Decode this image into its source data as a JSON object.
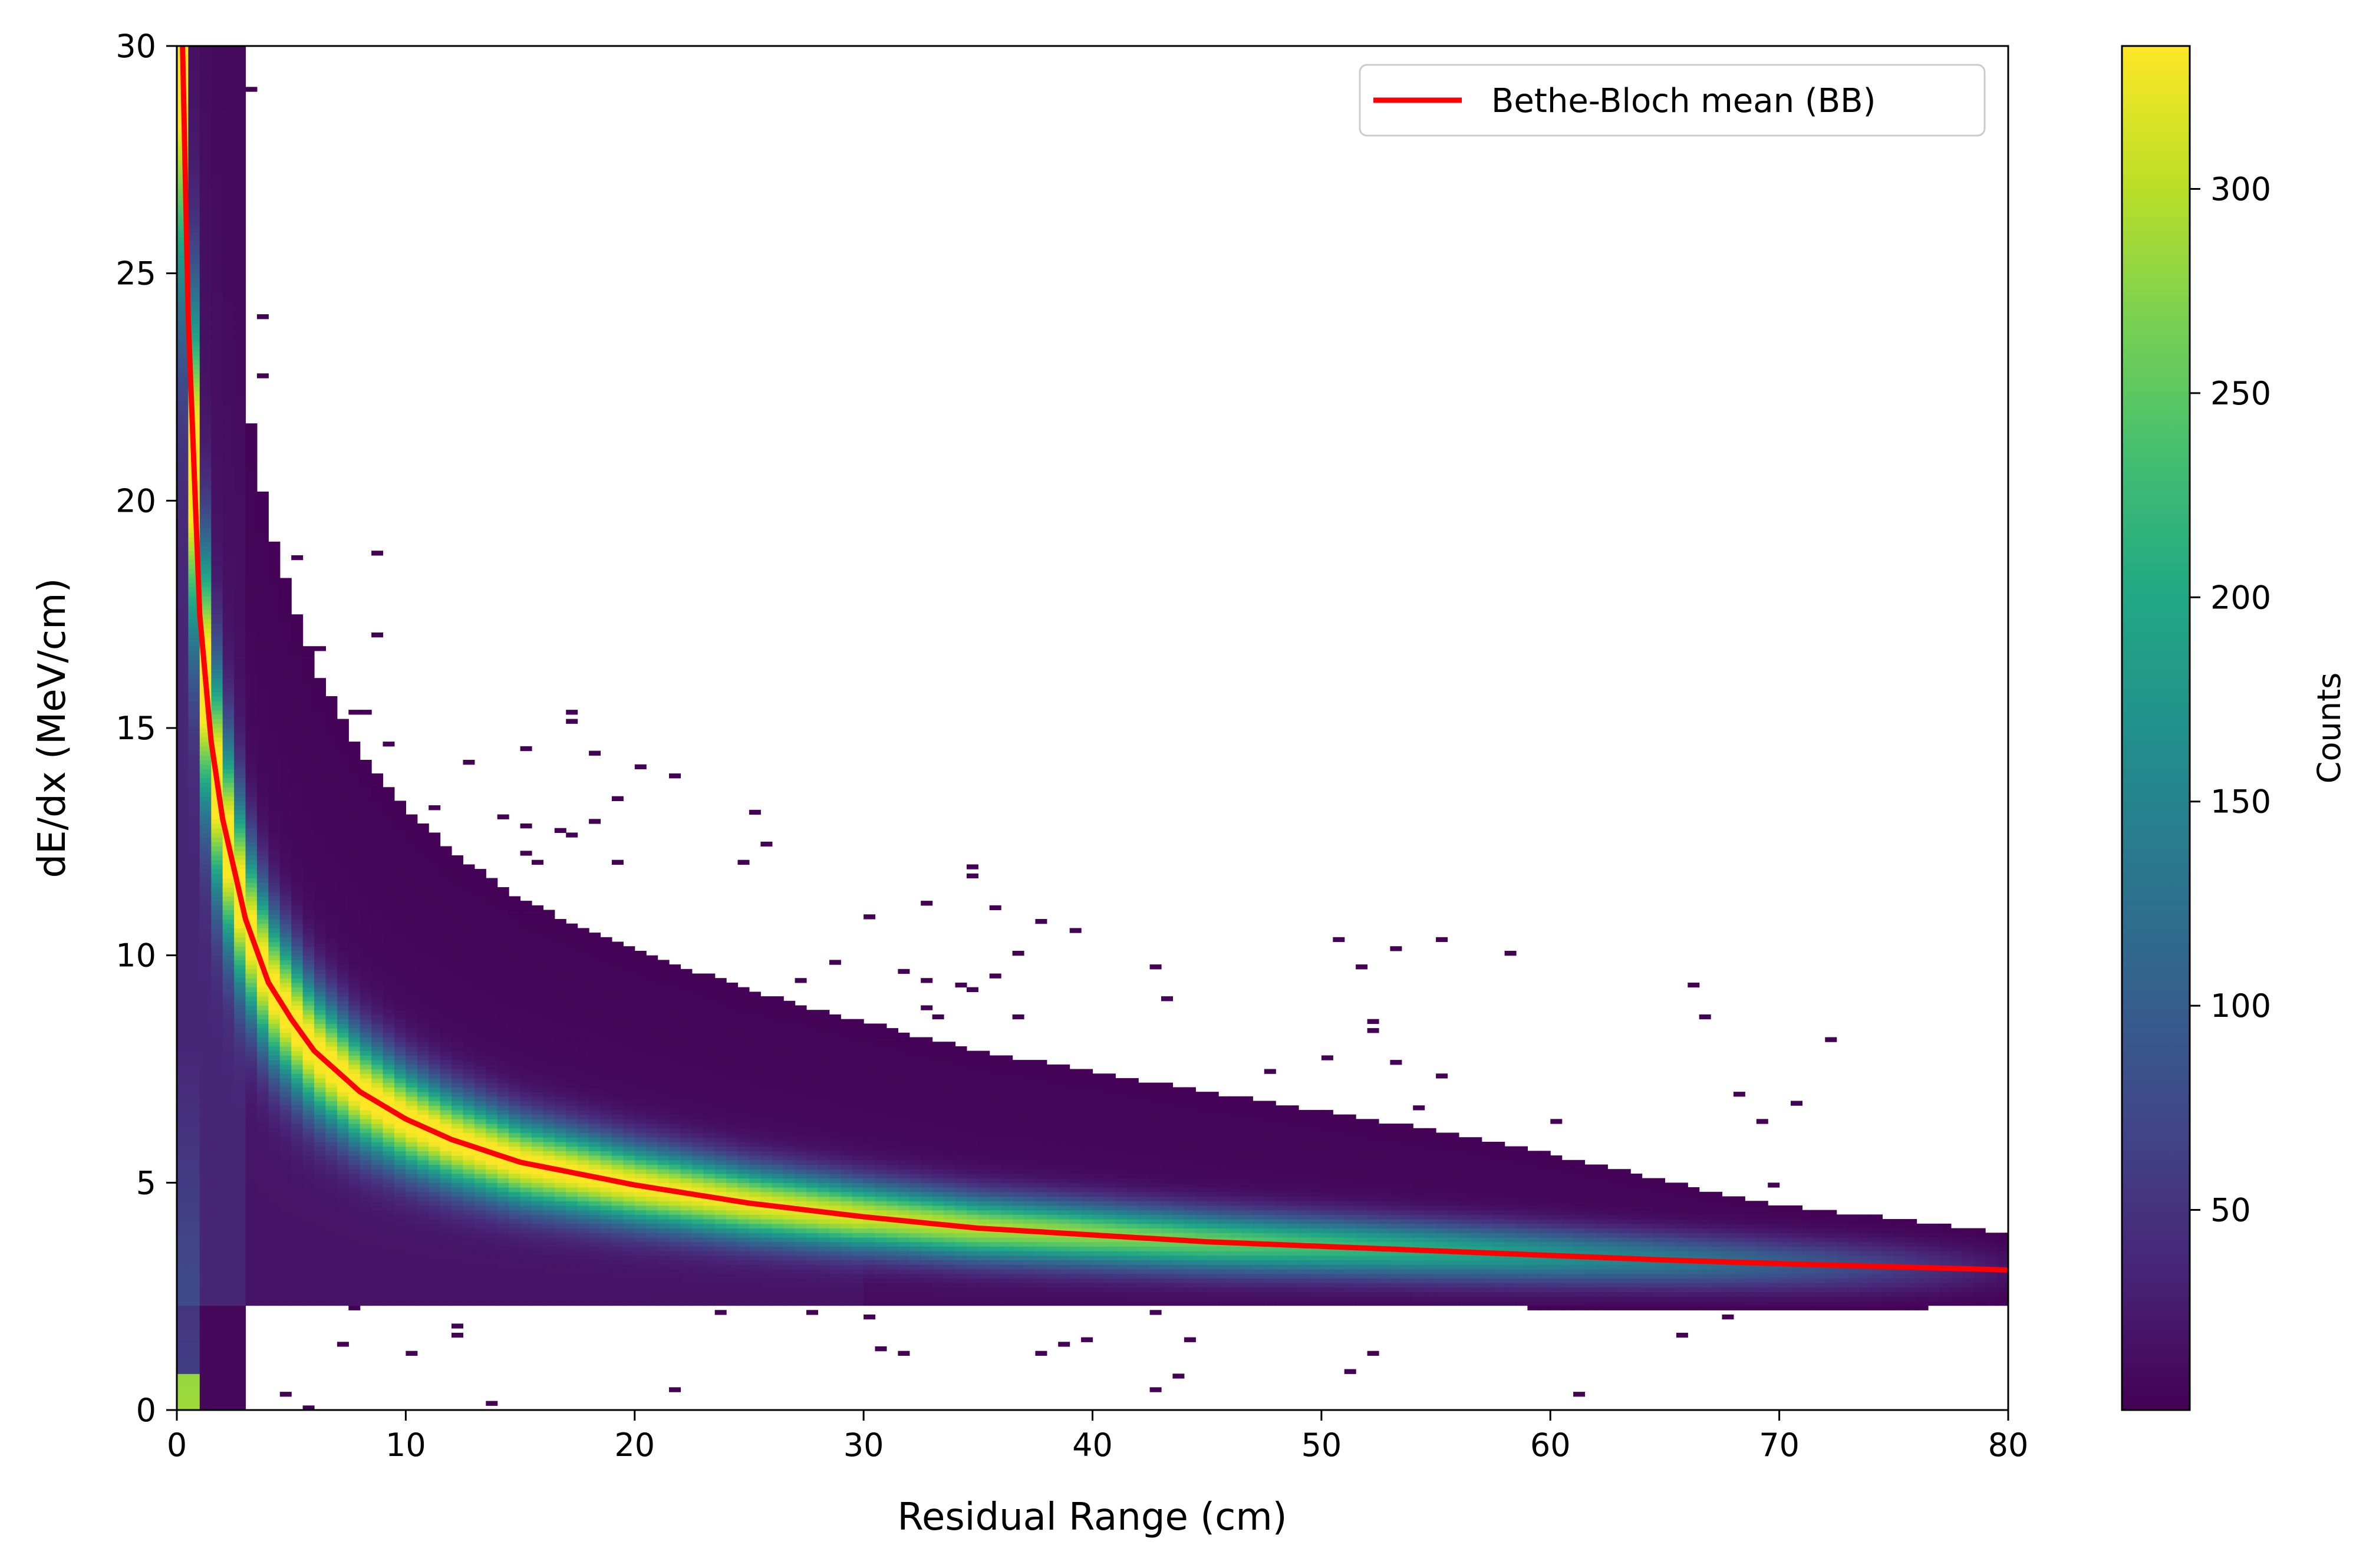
{
  "chart_data": {
    "type": "heatmap",
    "title": "",
    "xlabel": "Residual Range (cm)",
    "ylabel": "dE/dx (MeV/cm)",
    "xlim": [
      0,
      80
    ],
    "ylim": [
      0,
      30
    ],
    "xticks": [
      "0",
      "10",
      "20",
      "30",
      "40",
      "50",
      "60",
      "70",
      "80"
    ],
    "yticks": [
      "0",
      "5",
      "10",
      "15",
      "20",
      "25",
      "30"
    ],
    "colorbar": {
      "label": "Counts",
      "range": [
        1,
        335
      ],
      "ticks": [
        "50",
        "100",
        "150",
        "200",
        "250",
        "300"
      ],
      "colormap": "viridis"
    },
    "legend": {
      "position": "top-right",
      "entries": [
        "Bethe-Bloch mean (BB)"
      ]
    },
    "curve": {
      "name": "Bethe-Bloch mean (BB)",
      "color": "#ff0000",
      "x": [
        0.3,
        0.5,
        1,
        1.5,
        2,
        3,
        4,
        5,
        6,
        8,
        10,
        12,
        15,
        20,
        25,
        30,
        35,
        40,
        45,
        50,
        55,
        60,
        65,
        70,
        75,
        80
      ],
      "y": [
        30.0,
        24.0,
        17.5,
        14.7,
        13.0,
        10.8,
        9.4,
        8.6,
        7.9,
        7.0,
        6.4,
        5.95,
        5.45,
        4.95,
        4.55,
        4.25,
        4.0,
        3.85,
        3.7,
        3.6,
        3.5,
        3.4,
        3.3,
        3.22,
        3.15,
        3.08
      ]
    },
    "histogram_model": {
      "x_bin_width": 0.5,
      "y_bin_width": 0.1,
      "band_width_fraction": 0.12,
      "peak_counts": 335
    }
  }
}
